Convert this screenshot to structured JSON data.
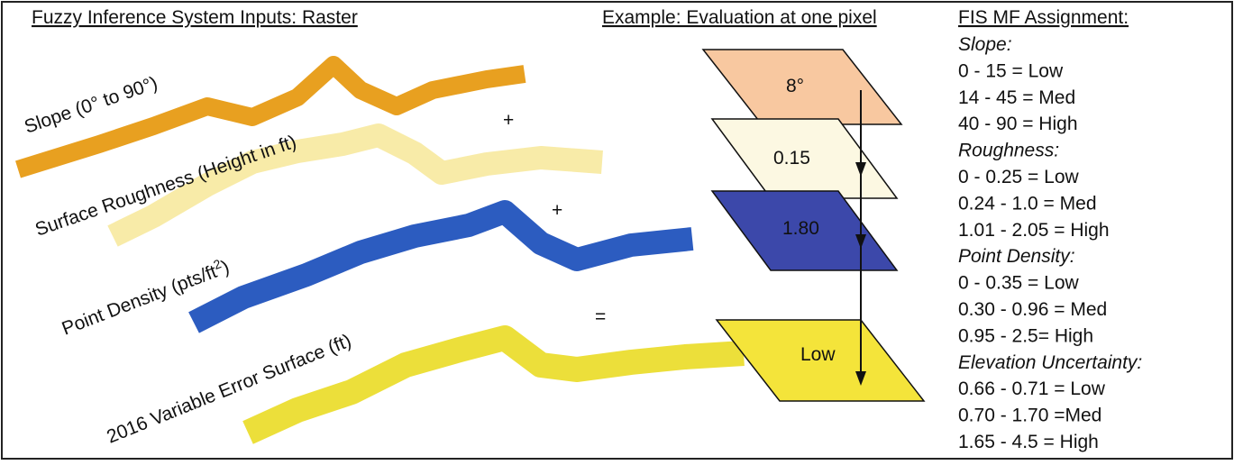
{
  "left": {
    "title": "Fuzzy Inference System Inputs: Raster",
    "layers": [
      {
        "label": "Slope (0° to 90°)"
      },
      {
        "label": "Surface Roughness (Height in ft)"
      },
      {
        "label": "Point Density (pts/ft",
        "sup": "2",
        "tail": ")"
      },
      {
        "label": "2016 Variable Error Surface (ft)"
      }
    ],
    "operators": [
      "+",
      "+",
      "="
    ]
  },
  "middle": {
    "title": "Example: Evaluation at one pixel",
    "values": [
      "8°",
      "0.15",
      "1.80",
      "Low"
    ]
  },
  "right": {
    "title": "FIS MF Assignment:",
    "groups": [
      {
        "name": "Slope:",
        "items": [
          "0 - 15 = Low",
          "14 - 45 = Med",
          "40 - 90 = High"
        ]
      },
      {
        "name": "Roughness:",
        "items": [
          "0 - 0.25 = Low",
          "0.24 - 1.0 = Med",
          "1.01 - 2.05 = High"
        ]
      },
      {
        "name": "Point Density:",
        "items": [
          "0 - 0.35 = Low",
          "0.30 - 0.96 = Med",
          "0.95 - 2.5= High"
        ]
      },
      {
        "name": "Elevation Uncertainty:",
        "items": [
          "0.66 - 0.71 = Low",
          "0.70 - 1.70 =Med",
          "1.65 - 4.5 = High"
        ]
      }
    ]
  }
}
